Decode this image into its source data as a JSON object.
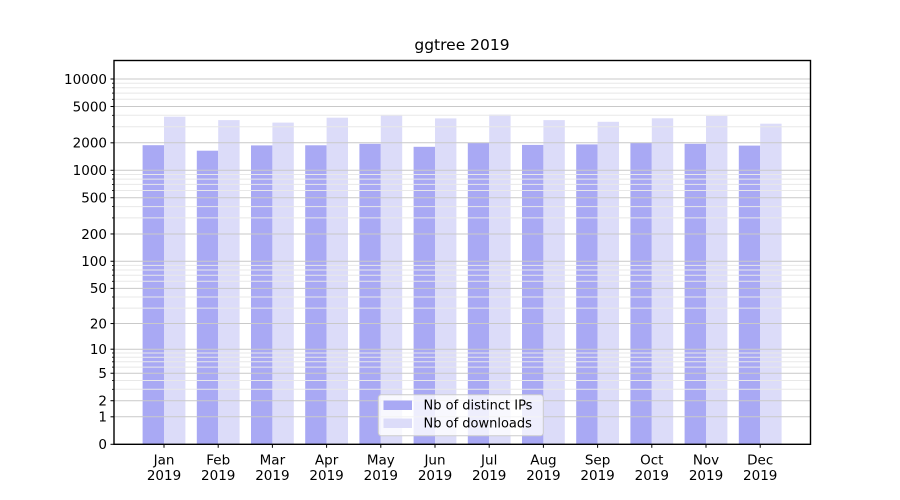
{
  "chart_data": {
    "type": "bar",
    "title": "ggtree 2019",
    "categories": [
      "Jan",
      "Feb",
      "Mar",
      "Apr",
      "May",
      "Jun",
      "Jul",
      "Aug",
      "Sep",
      "Oct",
      "Nov",
      "Dec"
    ],
    "x_year_label": "2019",
    "series": [
      {
        "name": "Nb of distinct IPs",
        "color": "#a9a9f4",
        "values": [
          1885,
          1640,
          1875,
          1880,
          1950,
          1810,
          2000,
          1900,
          1920,
          2000,
          1950,
          1865
        ]
      },
      {
        "name": "Nb of downloads",
        "color": "#dcdcf9",
        "values": [
          3860,
          3550,
          3330,
          3770,
          4040,
          3700,
          4070,
          3550,
          3400,
          3710,
          3930,
          3240
        ]
      }
    ],
    "yscale": "log1p",
    "ylim": [
      0,
      16000
    ],
    "y_tick_values": [
      0,
      1,
      2,
      5,
      10,
      20,
      50,
      100,
      200,
      500,
      1000,
      2000,
      5000,
      10000
    ],
    "y_tick_labels": [
      "0",
      "1",
      "2",
      "5",
      "10",
      "20",
      "50",
      "100",
      "200",
      "500",
      "1000",
      "2000",
      "5000",
      "10000"
    ],
    "y_minor_bases": [
      3,
      4,
      6,
      7,
      8,
      9
    ],
    "grid": true,
    "legend": {
      "position": "lower center",
      "entries": [
        "Nb of distinct IPs",
        "Nb of downloads"
      ]
    },
    "colors": {
      "grid_major": "#c9c9c9",
      "grid_minor": "#e8e8e8",
      "axis": "#000000",
      "background": "#ffffff",
      "legend_border": "#cccccc",
      "legend_background": "#ffffff"
    }
  }
}
